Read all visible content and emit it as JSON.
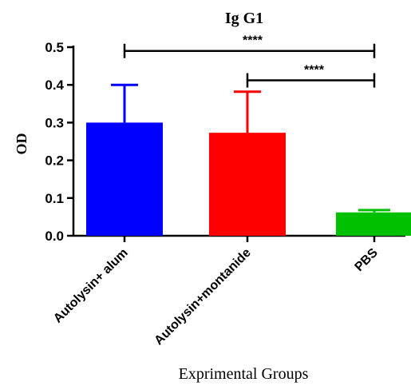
{
  "chart_data": {
    "type": "bar",
    "title": "Ig G1",
    "xlabel": "Exprimental Groups",
    "ylabel": "OD",
    "ylim": [
      0,
      0.5
    ],
    "yticks": [
      "0.0",
      "0.1",
      "0.2",
      "0.3",
      "0.4",
      "0.5"
    ],
    "categories": [
      "Autolysin+ alum",
      "Autolysin+montanide",
      "PBS"
    ],
    "values": [
      0.3,
      0.273,
      0.062
    ],
    "error_upper": [
      0.4,
      0.382,
      0.068
    ],
    "colors": [
      "#0000ff",
      "#ff0000",
      "#00c000"
    ],
    "grid": false,
    "legend": "none",
    "significance": [
      {
        "from": 0,
        "to": 2,
        "level": 0.49,
        "label": "****"
      },
      {
        "from": 1,
        "to": 2,
        "level": 0.412,
        "label": "****"
      }
    ]
  }
}
